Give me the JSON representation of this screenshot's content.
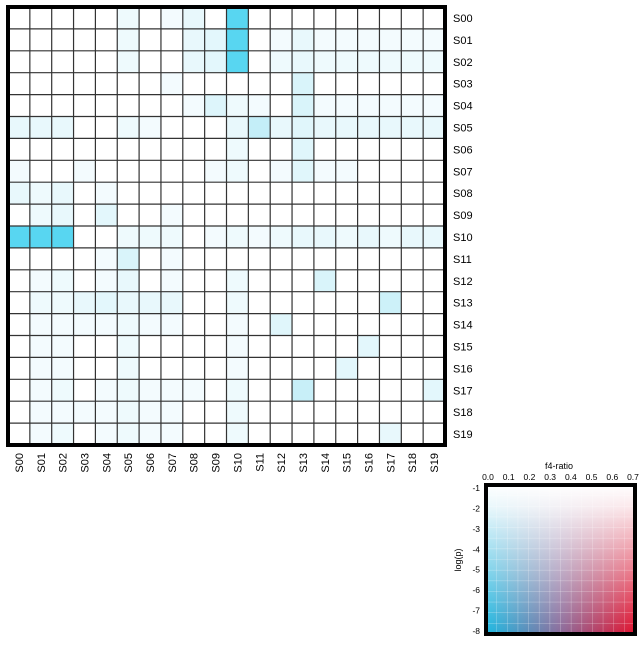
{
  "chart_data": [
    {
      "type": "heatmap",
      "title": "",
      "rows": [
        "S00",
        "S01",
        "S02",
        "S03",
        "S04",
        "S05",
        "S06",
        "S07",
        "S08",
        "S09",
        "S10",
        "S11",
        "S12",
        "S13",
        "S14",
        "S15",
        "S16",
        "S17",
        "S18",
        "S19"
      ],
      "columns": [
        "S00",
        "S01",
        "S02",
        "S03",
        "S04",
        "S05",
        "S06",
        "S07",
        "S08",
        "S09",
        "S10",
        "S11",
        "S12",
        "S13",
        "S14",
        "S15",
        "S16",
        "S17",
        "S18",
        "S19"
      ],
      "cell_fills": [
        [
          "#ffffff",
          "#ffffff",
          "#ffffff",
          "#ffffff",
          "#ffffff",
          "#eefafd",
          "#ffffff",
          "#f3fbfe",
          "#e8f8fc",
          "#ffffff",
          "#58d6f1",
          "#ffffff",
          "#ffffff",
          "#ffffff",
          "#ffffff",
          "#ffffff",
          "#ffffff",
          "#ffffff",
          "#ffffff",
          "#ffffff"
        ],
        [
          "#ffffff",
          "#ffffff",
          "#ffffff",
          "#ffffff",
          "#ffffff",
          "#eefafd",
          "#ffffff",
          "#ffffff",
          "#e8f8fc",
          "#e3f7fc",
          "#58d6f1",
          "#ffffff",
          "#f3fbfe",
          "#e8f8fc",
          "#f3fbfe",
          "#f3fbfe",
          "#f3fbfe",
          "#f3fbfe",
          "#f3fbfe",
          "#f3fbfe"
        ],
        [
          "#ffffff",
          "#ffffff",
          "#ffffff",
          "#ffffff",
          "#ffffff",
          "#eefafd",
          "#ffffff",
          "#ffffff",
          "#e8f8fc",
          "#e3f7fc",
          "#58d6f1",
          "#ffffff",
          "#eefafd",
          "#e8f8fc",
          "#eefafd",
          "#eefafd",
          "#eefafd",
          "#eefafd",
          "#eefafd",
          "#eefafd"
        ],
        [
          "#ffffff",
          "#ffffff",
          "#ffffff",
          "#ffffff",
          "#ffffff",
          "#ffffff",
          "#ffffff",
          "#f3fbfe",
          "#ffffff",
          "#ffffff",
          "#ffffff",
          "#ffffff",
          "#ffffff",
          "#d9f4fa",
          "#ffffff",
          "#ffffff",
          "#ffffff",
          "#ffffff",
          "#ffffff",
          "#ffffff"
        ],
        [
          "#ffffff",
          "#ffffff",
          "#ffffff",
          "#ffffff",
          "#ffffff",
          "#ffffff",
          "#ffffff",
          "#ffffff",
          "#f3fbfe",
          "#ddf5fb",
          "#eefafd",
          "#f3fbfe",
          "#ffffff",
          "#d9f4fa",
          "#f3fbfe",
          "#f3fbfe",
          "#f3fbfe",
          "#f3fbfe",
          "#f3fbfe",
          "#f3fbfe"
        ],
        [
          "#e8f8fc",
          "#e8f8fc",
          "#e8f8fc",
          "#ffffff",
          "#ffffff",
          "#eefafd",
          "#f3fbfe",
          "#ffffff",
          "#ffffff",
          "#ffffff",
          "#e8f8fc",
          "#c4eef8",
          "#e8f8fc",
          "#e0f6fb",
          "#e8f8fc",
          "#e8f8fc",
          "#e8f8fc",
          "#e8f8fc",
          "#e8f8fc",
          "#e8f8fc"
        ],
        [
          "#ffffff",
          "#ffffff",
          "#ffffff",
          "#ffffff",
          "#ffffff",
          "#ffffff",
          "#ffffff",
          "#ffffff",
          "#ffffff",
          "#ffffff",
          "#eefafd",
          "#ffffff",
          "#ffffff",
          "#e0f6fb",
          "#ffffff",
          "#ffffff",
          "#ffffff",
          "#ffffff",
          "#ffffff",
          "#ffffff"
        ],
        [
          "#f3fbfe",
          "#ffffff",
          "#ffffff",
          "#f3fbfe",
          "#ffffff",
          "#ffffff",
          "#ffffff",
          "#ffffff",
          "#ffffff",
          "#f3fbfe",
          "#eefafd",
          "#ffffff",
          "#f3fbfe",
          "#e0f6fb",
          "#f3fbfe",
          "#f3fbfe",
          "#ffffff",
          "#ffffff",
          "#ffffff",
          "#ffffff"
        ],
        [
          "#e8f8fc",
          "#eefafd",
          "#e8f8fc",
          "#ffffff",
          "#f3fbfe",
          "#ffffff",
          "#ffffff",
          "#ffffff",
          "#ffffff",
          "#ffffff",
          "#ffffff",
          "#ffffff",
          "#ffffff",
          "#ffffff",
          "#ffffff",
          "#ffffff",
          "#ffffff",
          "#ffffff",
          "#ffffff",
          "#ffffff"
        ],
        [
          "#ffffff",
          "#eefafd",
          "#e8f8fc",
          "#ffffff",
          "#e3f7fc",
          "#ffffff",
          "#ffffff",
          "#f3fbfe",
          "#ffffff",
          "#ffffff",
          "#ffffff",
          "#ffffff",
          "#ffffff",
          "#ffffff",
          "#ffffff",
          "#ffffff",
          "#ffffff",
          "#ffffff",
          "#ffffff",
          "#ffffff"
        ],
        [
          "#58d6f1",
          "#58d6f1",
          "#58d6f1",
          "#ffffff",
          "#ffffff",
          "#eefafd",
          "#eefafd",
          "#eefafd",
          "#ffffff",
          "#f3fbfe",
          "#eefafd",
          "#f3fbfe",
          "#eefafd",
          "#e8f8fc",
          "#e8f8fc",
          "#eefafd",
          "#e8f8fc",
          "#eefafd",
          "#e8f8fc",
          "#e8f8fc"
        ],
        [
          "#ffffff",
          "#ffffff",
          "#ffffff",
          "#ffffff",
          "#f3fbfe",
          "#d9f4fa",
          "#ffffff",
          "#f3fbfe",
          "#ffffff",
          "#ffffff",
          "#ffffff",
          "#ffffff",
          "#ffffff",
          "#ffffff",
          "#ffffff",
          "#ffffff",
          "#ffffff",
          "#ffffff",
          "#ffffff",
          "#ffffff"
        ],
        [
          "#ffffff",
          "#f3fbfe",
          "#eefafd",
          "#ffffff",
          "#f3fbfe",
          "#e8f8fc",
          "#ffffff",
          "#f3fbfe",
          "#ffffff",
          "#ffffff",
          "#eefafd",
          "#ffffff",
          "#ffffff",
          "#ffffff",
          "#d9f4fa",
          "#ffffff",
          "#ffffff",
          "#ffffff",
          "#ffffff",
          "#ffffff"
        ],
        [
          "#ffffff",
          "#eefafd",
          "#eefafd",
          "#e8f8fc",
          "#e3f7fc",
          "#e8f8fc",
          "#e8f8fc",
          "#e8f8fc",
          "#ffffff",
          "#ffffff",
          "#eefafd",
          "#ffffff",
          "#ffffff",
          "#ffffff",
          "#ffffff",
          "#ffffff",
          "#ffffff",
          "#cdf1f9",
          "#ffffff",
          "#ffffff"
        ],
        [
          "#ffffff",
          "#f3fbfe",
          "#f3fbfe",
          "#f3fbfe",
          "#f3fbfe",
          "#eefafd",
          "#f3fbfe",
          "#f3fbfe",
          "#ffffff",
          "#ffffff",
          "#f3fbfe",
          "#ffffff",
          "#e0f6fb",
          "#ffffff",
          "#ffffff",
          "#ffffff",
          "#ffffff",
          "#ffffff",
          "#ffffff",
          "#ffffff"
        ],
        [
          "#ffffff",
          "#f3fbfe",
          "#f3fbfe",
          "#ffffff",
          "#ffffff",
          "#eefafd",
          "#ffffff",
          "#ffffff",
          "#ffffff",
          "#ffffff",
          "#f3fbfe",
          "#ffffff",
          "#ffffff",
          "#ffffff",
          "#ffffff",
          "#ffffff",
          "#e3f7fc",
          "#ffffff",
          "#ffffff",
          "#ffffff"
        ],
        [
          "#ffffff",
          "#f3fbfe",
          "#f3fbfe",
          "#ffffff",
          "#ffffff",
          "#eefafd",
          "#ffffff",
          "#ffffff",
          "#ffffff",
          "#ffffff",
          "#f3fbfe",
          "#ffffff",
          "#ffffff",
          "#ffffff",
          "#ffffff",
          "#e3f7fc",
          "#ffffff",
          "#ffffff",
          "#ffffff",
          "#ffffff"
        ],
        [
          "#ffffff",
          "#f3fbfe",
          "#eefafd",
          "#ffffff",
          "#f3fbfe",
          "#eefafd",
          "#f3fbfe",
          "#f3fbfe",
          "#f3fbfe",
          "#ffffff",
          "#eefafd",
          "#ffffff",
          "#ffffff",
          "#c8eff8",
          "#ffffff",
          "#ffffff",
          "#ffffff",
          "#ffffff",
          "#ffffff",
          "#e3f7fc"
        ],
        [
          "#ffffff",
          "#f3fbfe",
          "#f3fbfe",
          "#f3fbfe",
          "#f3fbfe",
          "#eefafd",
          "#f3fbfe",
          "#f3fbfe",
          "#ffffff",
          "#ffffff",
          "#eefafd",
          "#ffffff",
          "#ffffff",
          "#ffffff",
          "#ffffff",
          "#ffffff",
          "#ffffff",
          "#ffffff",
          "#ffffff",
          "#ffffff"
        ],
        [
          "#ffffff",
          "#f3fbfe",
          "#eefafd",
          "#ffffff",
          "#f3fbfe",
          "#eefafd",
          "#f3fbfe",
          "#f3fbfe",
          "#ffffff",
          "#ffffff",
          "#eefafd",
          "#ffffff",
          "#ffffff",
          "#ffffff",
          "#ffffff",
          "#ffffff",
          "#ffffff",
          "#e8f8fc",
          "#ffffff",
          "#ffffff"
        ]
      ],
      "grid": true
    },
    {
      "type": "heatmap",
      "title": "f4-ratio",
      "xlabel": "",
      "ylabel": "log(p)",
      "xticks": [
        "0.0",
        "0.1",
        "0.2",
        "0.3",
        "0.4",
        "0.5",
        "0.6",
        "0.7"
      ],
      "yticks": [
        "-1",
        "-2",
        "-3",
        "-4",
        "-5",
        "-6",
        "-7",
        "-8"
      ],
      "xlim": [
        0.0,
        0.7
      ],
      "ylim": [
        -8,
        -1
      ],
      "colors": {
        "cyan_corner": "#1ab7e0",
        "red_corner": "#e0102c",
        "neutral": "#ffffff"
      }
    }
  ]
}
